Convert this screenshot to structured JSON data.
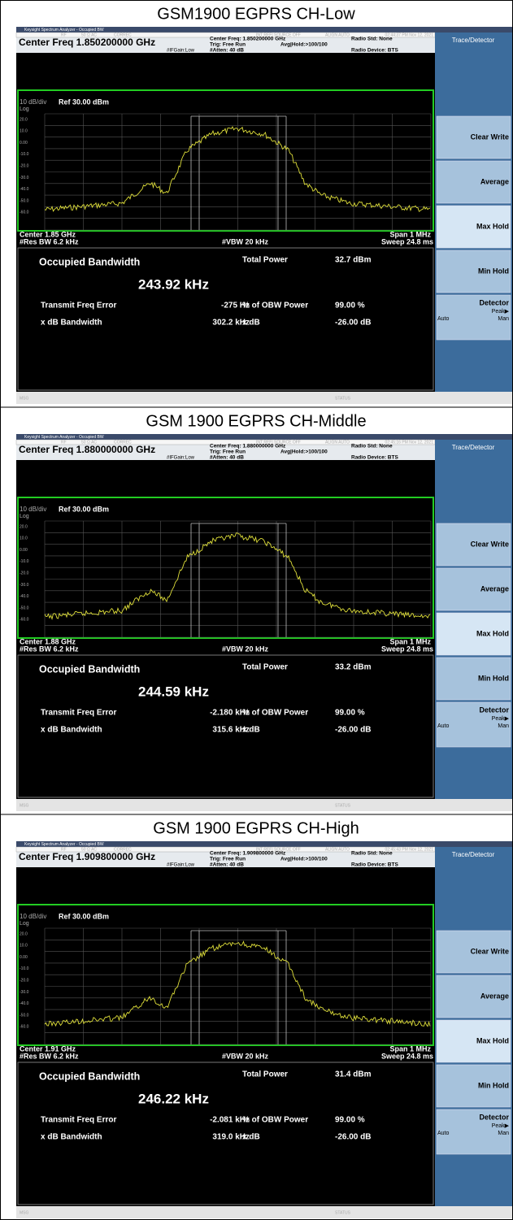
{
  "panels": [
    {
      "title": "GSM1900 EGPRS CH-Low",
      "timestamp": "02:44:37 PM Nov 12, 2021",
      "center_freq": "Center Freq 1.850200000 GHz",
      "center_freq_info": "Center Freq: 1.850200000 GHz",
      "center": "Center 1.85 GHz",
      "occupied_bandwidth": "243.92 kHz",
      "total_power": "32.7 dBm",
      "transmit_freq_error": "-275 Hz",
      "x_db_bandwidth": "302.2 kHz"
    },
    {
      "title": "GSM 1900 EGPRS CH-Middle",
      "timestamp": "02:45:16 PM Nov 12, 2021",
      "center_freq": "Center Freq 1.880000000 GHz",
      "center_freq_info": "Center Freq: 1.880000000 GHz",
      "center": "Center 1.88 GHz",
      "occupied_bandwidth": "244.59 kHz",
      "total_power": "33.2 dBm",
      "transmit_freq_error": "-2.180 kHz",
      "x_db_bandwidth": "315.6 kHz"
    },
    {
      "title": "GSM 1900 EGPRS CH-High",
      "timestamp": "02:45:43 PM Nov 12, 2021",
      "center_freq": "Center Freq 1.909800000 GHz",
      "center_freq_info": "Center Freq: 1.909800000 GHz",
      "center": "Center 1.91 GHz",
      "occupied_bandwidth": "246.22 kHz",
      "total_power": "31.4 dBm",
      "transmit_freq_error": "-2.081 kHz",
      "x_db_bandwidth": "319.0 kHz"
    }
  ],
  "ui": {
    "app_title": "Keysight Spectrum Analyzer - Occupied BW",
    "rf": "RF",
    "impedance": "50 Ω  AC",
    "correc": "CORREC",
    "ref_source": "INT REF| SOURCE OFF",
    "align": "ALIGN AUTO",
    "trig": "Trig: Free Run",
    "avg_hold": "Avg|Hold:>100/100",
    "atten": "#Atten: 40 dB",
    "if_gain": "#IFGain:Low",
    "radio_std": "Radio Std: None",
    "radio_device": "Radio Device: BTS",
    "menu_title": "Trace/Detector",
    "scale": "10 dB/div",
    "ref_level": "Ref 30.00 dBm",
    "log": "Log",
    "y_labels": [
      "20.0",
      "10.0",
      "0.00",
      "-10.0",
      "-20.0",
      "-30.0",
      "-40.0",
      "-50.0",
      "-60.0"
    ],
    "span": "Span 1 MHz",
    "res_bw": "#Res BW  6.2 kHz",
    "vbw": "#VBW  20 kHz",
    "sweep": "Sweep  24.8 ms",
    "occupied_bandwidth_label": "Occupied Bandwidth",
    "total_power_label": "Total Power",
    "transmit_freq_error_label": "Transmit Freq Error",
    "obw_power_label": "% of OBW Power",
    "obw_power": "99.00 %",
    "x_db_bandwidth_label": "x dB Bandwidth",
    "x_db_label": "x dB",
    "x_db": "-26.00 dB",
    "softkeys": [
      "Clear Write",
      "Average",
      "Max Hold",
      "Min Hold",
      "Detector"
    ],
    "detector_value": "Peak▶",
    "auto": "Auto",
    "man": "Man",
    "msg": "MSG",
    "status": "STATUS"
  }
}
